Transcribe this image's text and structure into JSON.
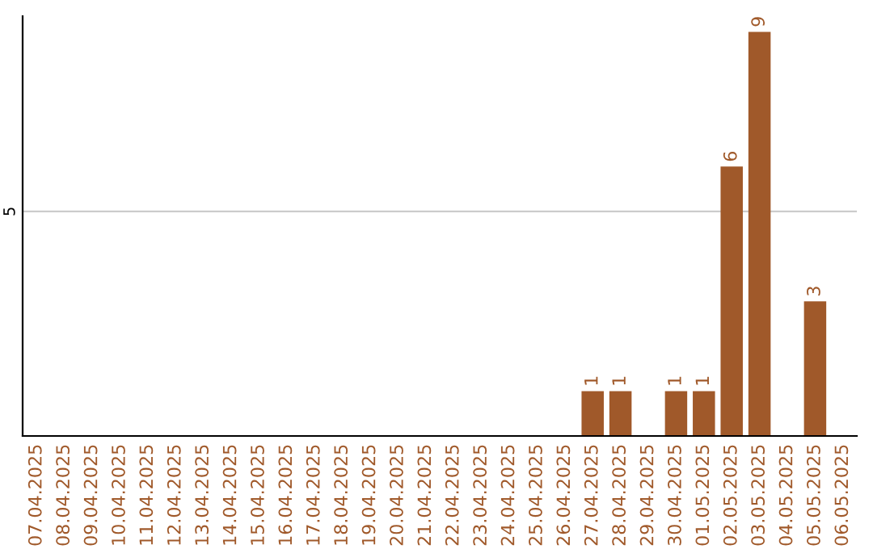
{
  "chart_data": {
    "type": "bar",
    "categories": [
      "07.04.2025",
      "08.04.2025",
      "09.04.2025",
      "10.04.2025",
      "11.04.2025",
      "12.04.2025",
      "13.04.2025",
      "14.04.2025",
      "15.04.2025",
      "16.04.2025",
      "17.04.2025",
      "18.04.2025",
      "19.04.2025",
      "20.04.2025",
      "21.04.2025",
      "22.04.2025",
      "23.04.2025",
      "24.04.2025",
      "25.04.2025",
      "26.04.2025",
      "27.04.2025",
      "28.04.2025",
      "29.04.2025",
      "30.04.2025",
      "01.05.2025",
      "02.05.2025",
      "03.05.2025",
      "04.05.2025",
      "05.05.2025",
      "06.05.2025"
    ],
    "values": [
      null,
      null,
      null,
      null,
      null,
      null,
      null,
      null,
      null,
      null,
      null,
      null,
      null,
      null,
      null,
      null,
      null,
      null,
      null,
      null,
      1,
      1,
      null,
      1,
      1,
      6,
      9,
      null,
      3,
      null
    ],
    "data_labels": true,
    "color": "#a0592a",
    "ylim": [
      0,
      9.35
    ],
    "yticks": [
      5
    ],
    "grid": "y"
  }
}
